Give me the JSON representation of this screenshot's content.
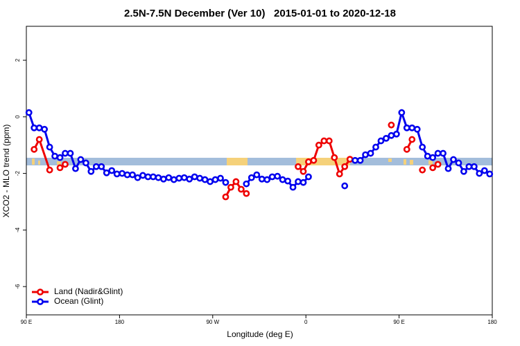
{
  "chart_data": {
    "type": "line",
    "title": "2.5N-7.5N December (Ver 10)   2015-01-01 to 2020-12-18",
    "xlabel": "Longitude (deg E)",
    "ylabel": "XCO2 - MLO trend (ppm)",
    "xlim": [
      90,
      540
    ],
    "ylim": [
      -7,
      3.2
    ],
    "xticks": [
      {
        "value": 90,
        "label": "90 E"
      },
      {
        "value": 180,
        "label": "180"
      },
      {
        "value": 270,
        "label": "90 W"
      },
      {
        "value": 360,
        "label": "0"
      },
      {
        "value": 450,
        "label": "90 E"
      },
      {
        "value": 540,
        "label": "180"
      }
    ],
    "yticks": [
      -6,
      -4,
      -2,
      0,
      2
    ],
    "legend": "bottom-left",
    "series": [
      {
        "name": "Land (Nadir&Glint)",
        "color": "#ee0000",
        "x": [
          97.5,
          102.5,
          112.5,
          117.5,
          122.5,
          127.5,
          200,
          282.5,
          287.5,
          292.5,
          297.5,
          302.5,
          330,
          352.5,
          357.5,
          362.5,
          367.5,
          372.5,
          377.5,
          382.5,
          387.5,
          392.5,
          397.5,
          402.5,
          420,
          442.5,
          450,
          457.5,
          462.5,
          467.5,
          472.5,
          477.5,
          482.5,
          487.5
        ],
        "values": [
          -1.15,
          -0.8,
          -1.88,
          null,
          -1.8,
          -1.68,
          null,
          -2.83,
          -2.49,
          -2.29,
          -2.56,
          -2.71,
          null,
          -1.76,
          -1.93,
          -1.59,
          -1.54,
          -1.0,
          -0.85,
          -0.85,
          -1.44,
          -2.02,
          -1.76,
          -1.5,
          null,
          -0.29,
          null,
          -1.15,
          -0.8,
          null,
          -1.88,
          null,
          -1.8,
          -1.68
        ]
      },
      {
        "name": "Ocean (Glint)",
        "color": "#0000ee",
        "x": [
          92.5,
          97.5,
          102.5,
          107.5,
          112.5,
          117.5,
          122.5,
          127.5,
          132.5,
          137.5,
          142.5,
          147.5,
          152.5,
          157.5,
          162.5,
          167.5,
          172.5,
          177.5,
          182.5,
          187.5,
          192.5,
          197.5,
          202.5,
          207.5,
          212.5,
          217.5,
          222.5,
          227.5,
          232.5,
          237.5,
          242.5,
          247.5,
          252.5,
          257.5,
          262.5,
          267.5,
          272.5,
          277.5,
          282.5,
          287.5,
          292.5,
          297.5,
          302.5,
          307.5,
          312.5,
          317.5,
          322.5,
          327.5,
          332.5,
          337.5,
          342.5,
          347.5,
          352.5,
          357.5,
          362.5,
          367.5,
          372.5,
          377.5,
          382.5,
          387.5,
          392.5,
          397.5,
          402.5,
          407.5,
          412.5,
          417.5,
          422.5,
          427.5,
          432.5,
          437.5,
          442.5,
          447.5,
          452.5,
          457.5,
          462.5,
          467.5,
          472.5,
          477.5,
          482.5,
          487.5,
          492.5,
          497.5,
          502.5,
          507.5,
          512.5,
          517.5,
          522.5,
          527.5,
          532.5,
          537.5
        ],
        "values": [
          0.15,
          -0.39,
          -0.39,
          -0.44,
          -1.07,
          -1.39,
          -1.44,
          -1.29,
          -1.29,
          -1.83,
          -1.51,
          -1.63,
          -1.93,
          -1.76,
          -1.76,
          -1.98,
          -1.9,
          -2.02,
          -2.0,
          -2.05,
          -2.05,
          -2.15,
          -2.07,
          -2.12,
          -2.12,
          -2.15,
          -2.2,
          -2.15,
          -2.22,
          -2.17,
          -2.15,
          -2.2,
          -2.12,
          -2.17,
          -2.22,
          -2.29,
          -2.22,
          -2.17,
          -2.32,
          null,
          null,
          null,
          -2.37,
          -2.15,
          -2.05,
          -2.2,
          -2.22,
          -2.12,
          -2.1,
          -2.22,
          -2.27,
          -2.49,
          -2.29,
          -2.32,
          -2.12,
          null,
          null,
          null,
          null,
          null,
          null,
          -2.44,
          null,
          -1.54,
          -1.54,
          -1.34,
          -1.29,
          -1.07,
          -0.85,
          -0.76,
          -0.66,
          -0.61,
          0.15,
          -0.39,
          -0.39,
          -0.44,
          -1.07,
          -1.39,
          -1.44,
          -1.29,
          -1.29,
          -1.83,
          -1.51,
          -1.63,
          -1.93,
          -1.76,
          -1.76,
          -2.0,
          -1.9,
          -2.02
        ]
      }
    ]
  }
}
